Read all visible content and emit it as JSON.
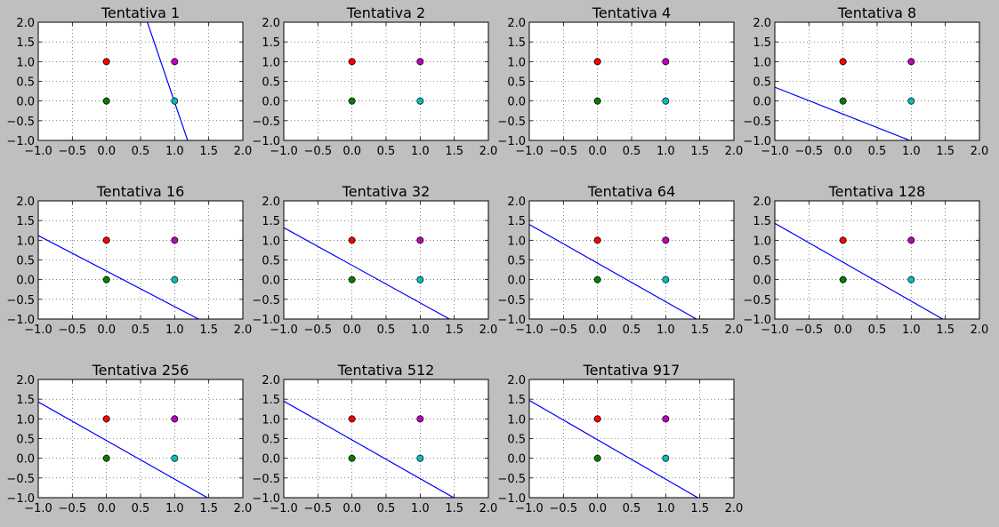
{
  "colors": {
    "figure_bg": "#bfbfbf",
    "axes_bg": "#ffffff",
    "line": "#0000ff",
    "grid": "#000000"
  },
  "points": [
    {
      "x": 0,
      "y": 1,
      "color": "#ff0000"
    },
    {
      "x": 1,
      "y": 1,
      "color": "#bf00bf"
    },
    {
      "x": 0,
      "y": 0,
      "color": "#008000"
    },
    {
      "x": 1,
      "y": 0,
      "color": "#00bfbf"
    }
  ],
  "chart_data": [
    {
      "type": "line",
      "title": "Tentativa 1",
      "xlim": [
        -1,
        2
      ],
      "ylim": [
        -1,
        2
      ],
      "xticks": [
        "−1.0",
        "−0.5",
        "0.0",
        "0.5",
        "1.0",
        "1.5",
        "2.0"
      ],
      "yticks": [
        "−1.0",
        "−0.5",
        "0.0",
        "0.5",
        "1.0",
        "1.5",
        "2.0"
      ],
      "grid": true,
      "line": {
        "x": [
          0.6,
          1.19
        ],
        "y": [
          2.0,
          -1.0
        ]
      },
      "scatter": [
        {
          "x": 0,
          "y": 1
        },
        {
          "x": 1,
          "y": 1
        },
        {
          "x": 0,
          "y": 0
        },
        {
          "x": 1,
          "y": 0
        }
      ]
    },
    {
      "type": "scatter",
      "title": "Tentativa 2",
      "xlim": [
        -1,
        2
      ],
      "ylim": [
        -1,
        2
      ],
      "xticks": [
        "−1.0",
        "−0.5",
        "0.0",
        "0.5",
        "1.0",
        "1.5",
        "2.0"
      ],
      "yticks": [
        "−1.0",
        "−0.5",
        "0.0",
        "0.5",
        "1.0",
        "1.5",
        "2.0"
      ],
      "grid": true,
      "line": null,
      "scatter": [
        {
          "x": 0,
          "y": 1
        },
        {
          "x": 1,
          "y": 1
        },
        {
          "x": 0,
          "y": 0
        },
        {
          "x": 1,
          "y": 0
        }
      ]
    },
    {
      "type": "scatter",
      "title": "Tentativa 4",
      "xlim": [
        -1,
        2
      ],
      "ylim": [
        -1,
        2
      ],
      "xticks": [
        "−1.0",
        "−0.5",
        "0.0",
        "0.5",
        "1.0",
        "1.5",
        "2.0"
      ],
      "yticks": [
        "−1.0",
        "−0.5",
        "0.0",
        "0.5",
        "1.0",
        "1.5",
        "2.0"
      ],
      "grid": true,
      "line": null,
      "scatter": [
        {
          "x": 0,
          "y": 1
        },
        {
          "x": 1,
          "y": 1
        },
        {
          "x": 0,
          "y": 0
        },
        {
          "x": 1,
          "y": 0
        }
      ]
    },
    {
      "type": "line",
      "title": "Tentativa 8",
      "xlim": [
        -1,
        2
      ],
      "ylim": [
        -1,
        2
      ],
      "xticks": [
        "−1.0",
        "−0.5",
        "0.0",
        "0.5",
        "1.0",
        "1.5",
        "2.0"
      ],
      "yticks": [
        "−1.0",
        "−0.5",
        "0.0",
        "0.5",
        "1.0",
        "1.5",
        "2.0"
      ],
      "grid": true,
      "line": {
        "x": [
          -1.0,
          0.98
        ],
        "y": [
          0.35,
          -1.0
        ]
      },
      "scatter": [
        {
          "x": 0,
          "y": 1
        },
        {
          "x": 1,
          "y": 1
        },
        {
          "x": 0,
          "y": 0
        },
        {
          "x": 1,
          "y": 0
        }
      ]
    },
    {
      "type": "line",
      "title": "Tentativa 16",
      "xlim": [
        -1,
        2
      ],
      "ylim": [
        -1,
        2
      ],
      "xticks": [
        "−1.0",
        "−0.5",
        "0.0",
        "0.5",
        "1.0",
        "1.5",
        "2.0"
      ],
      "yticks": [
        "−1.0",
        "−0.5",
        "0.0",
        "0.5",
        "1.0",
        "1.5",
        "2.0"
      ],
      "grid": true,
      "line": {
        "x": [
          -1.0,
          1.35
        ],
        "y": [
          1.12,
          -1.0
        ]
      },
      "scatter": [
        {
          "x": 0,
          "y": 1
        },
        {
          "x": 1,
          "y": 1
        },
        {
          "x": 0,
          "y": 0
        },
        {
          "x": 1,
          "y": 0
        }
      ]
    },
    {
      "type": "line",
      "title": "Tentativa 32",
      "xlim": [
        -1,
        2
      ],
      "ylim": [
        -1,
        2
      ],
      "xticks": [
        "−1.0",
        "−0.5",
        "0.0",
        "0.5",
        "1.0",
        "1.5",
        "2.0"
      ],
      "yticks": [
        "−1.0",
        "−0.5",
        "0.0",
        "0.5",
        "1.0",
        "1.5",
        "2.0"
      ],
      "grid": true,
      "line": {
        "x": [
          -1.0,
          1.43
        ],
        "y": [
          1.32,
          -1.0
        ]
      },
      "scatter": [
        {
          "x": 0,
          "y": 1
        },
        {
          "x": 1,
          "y": 1
        },
        {
          "x": 0,
          "y": 0
        },
        {
          "x": 1,
          "y": 0
        }
      ]
    },
    {
      "type": "line",
      "title": "Tentativa 64",
      "xlim": [
        -1,
        2
      ],
      "ylim": [
        -1,
        2
      ],
      "xticks": [
        "−1.0",
        "−0.5",
        "0.0",
        "0.5",
        "1.0",
        "1.5",
        "2.0"
      ],
      "yticks": [
        "−1.0",
        "−0.5",
        "0.0",
        "0.5",
        "1.0",
        "1.5",
        "2.0"
      ],
      "grid": true,
      "line": {
        "x": [
          -1.0,
          1.45
        ],
        "y": [
          1.4,
          -1.0
        ]
      },
      "scatter": [
        {
          "x": 0,
          "y": 1
        },
        {
          "x": 1,
          "y": 1
        },
        {
          "x": 0,
          "y": 0
        },
        {
          "x": 1,
          "y": 0
        }
      ]
    },
    {
      "type": "line",
      "title": "Tentativa 128",
      "xlim": [
        -1,
        2
      ],
      "ylim": [
        -1,
        2
      ],
      "xticks": [
        "−1.0",
        "−0.5",
        "0.0",
        "0.5",
        "1.0",
        "1.5",
        "2.0"
      ],
      "yticks": [
        "−1.0",
        "−0.5",
        "0.0",
        "0.5",
        "1.0",
        "1.5",
        "2.0"
      ],
      "grid": true,
      "line": {
        "x": [
          -1.0,
          1.46
        ],
        "y": [
          1.43,
          -1.0
        ]
      },
      "scatter": [
        {
          "x": 0,
          "y": 1
        },
        {
          "x": 1,
          "y": 1
        },
        {
          "x": 0,
          "y": 0
        },
        {
          "x": 1,
          "y": 0
        }
      ]
    },
    {
      "type": "line",
      "title": "Tentativa 256",
      "xlim": [
        -1,
        2
      ],
      "ylim": [
        -1,
        2
      ],
      "xticks": [
        "−1.0",
        "−0.5",
        "0.0",
        "0.5",
        "1.0",
        "1.5",
        "2.0"
      ],
      "yticks": [
        "−1.0",
        "−0.5",
        "0.0",
        "0.5",
        "1.0",
        "1.5",
        "2.0"
      ],
      "grid": true,
      "line": {
        "x": [
          -1.0,
          1.48
        ],
        "y": [
          1.43,
          -1.0
        ]
      },
      "scatter": [
        {
          "x": 0,
          "y": 1
        },
        {
          "x": 1,
          "y": 1
        },
        {
          "x": 0,
          "y": 0
        },
        {
          "x": 1,
          "y": 0
        }
      ]
    },
    {
      "type": "line",
      "title": "Tentativa 512",
      "xlim": [
        -1,
        2
      ],
      "ylim": [
        -1,
        2
      ],
      "xticks": [
        "−1.0",
        "−0.5",
        "0.0",
        "0.5",
        "1.0",
        "1.5",
        "2.0"
      ],
      "yticks": [
        "−1.0",
        "−0.5",
        "0.0",
        "0.5",
        "1.0",
        "1.5",
        "2.0"
      ],
      "grid": true,
      "line": {
        "x": [
          -1.0,
          1.49
        ],
        "y": [
          1.45,
          -1.0
        ]
      },
      "scatter": [
        {
          "x": 0,
          "y": 1
        },
        {
          "x": 1,
          "y": 1
        },
        {
          "x": 0,
          "y": 0
        },
        {
          "x": 1,
          "y": 0
        }
      ]
    },
    {
      "type": "line",
      "title": "Tentativa 917",
      "xlim": [
        -1,
        2
      ],
      "ylim": [
        -1,
        2
      ],
      "xticks": [
        "−1.0",
        "−0.5",
        "0.0",
        "0.5",
        "1.0",
        "1.5",
        "2.0"
      ],
      "yticks": [
        "−1.0",
        "−0.5",
        "0.0",
        "0.5",
        "1.0",
        "1.5",
        "2.0"
      ],
      "grid": true,
      "line": {
        "x": [
          -1.0,
          1.47
        ],
        "y": [
          1.47,
          -1.0
        ]
      },
      "scatter": [
        {
          "x": 0,
          "y": 1
        },
        {
          "x": 1,
          "y": 1
        },
        {
          "x": 0,
          "y": 0
        },
        {
          "x": 1,
          "y": 0
        }
      ]
    }
  ]
}
